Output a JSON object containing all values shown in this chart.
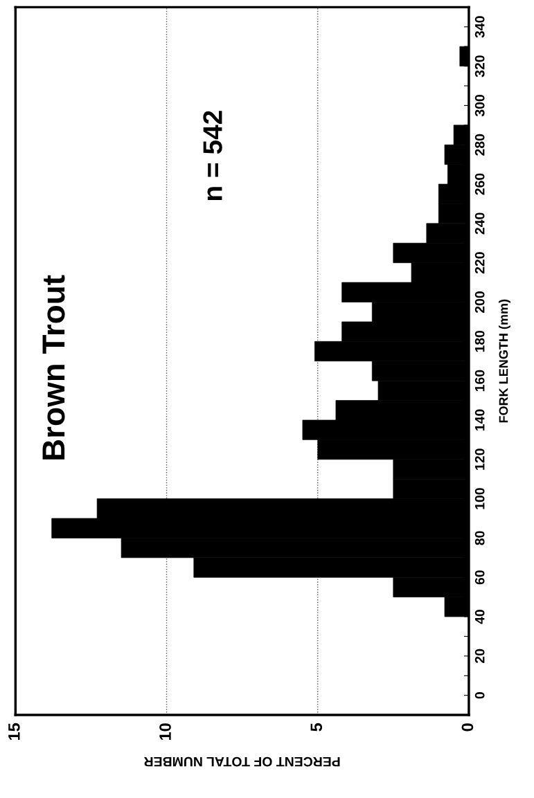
{
  "chart_data": {
    "type": "histogram",
    "orientation": "horizontal",
    "title": "Brown Trout",
    "annotations": [
      "n = 542"
    ],
    "xlabel": "PERCENT OF TOTAL NUMBER",
    "ylabel": "FORK LENGTH (mm)",
    "bins": [
      40,
      50,
      60,
      70,
      80,
      90,
      100,
      110,
      120,
      130,
      140,
      150,
      160,
      170,
      180,
      190,
      200,
      210,
      220,
      230,
      240,
      250,
      260,
      270,
      280,
      290,
      300,
      310,
      320,
      330
    ],
    "values": [
      0.8,
      2.5,
      9.1,
      11.5,
      13.8,
      12.3,
      2.5,
      2.5,
      5.0,
      5.5,
      4.4,
      3.0,
      3.2,
      5.1,
      4.2,
      3.2,
      4.2,
      1.9,
      2.5,
      1.4,
      1.0,
      1.0,
      0.7,
      0.8,
      0.5,
      0,
      0,
      0,
      0.3
    ],
    "color": "#000000",
    "xlim": [
      15,
      0
    ],
    "xticks": [
      15,
      10,
      5,
      0
    ],
    "ylim": [
      -10,
      350
    ],
    "yticks": [
      0,
      {
        "value": 10,
        "label": null
      },
      20,
      {
        "value": 30,
        "label": null
      },
      40,
      {
        "value": 50,
        "label": null
      },
      60,
      {
        "value": 70,
        "label": null
      },
      80,
      {
        "value": 90,
        "label": null
      },
      100,
      {
        "value": 110,
        "label": null
      },
      120,
      {
        "value": 130,
        "label": null
      },
      140,
      {
        "value": 150,
        "label": null
      },
      160,
      {
        "value": 170,
        "label": null
      },
      180,
      {
        "value": 190,
        "label": null
      },
      200,
      {
        "value": 210,
        "label": null
      },
      220,
      {
        "value": 230,
        "label": null
      },
      240,
      {
        "value": 250,
        "label": null
      },
      260,
      {
        "value": 270,
        "label": null
      },
      280,
      {
        "value": 290,
        "label": null
      },
      300,
      {
        "value": 310,
        "label": null
      },
      320,
      {
        "value": 330,
        "label": null
      },
      340
    ],
    "grid": "x"
  }
}
